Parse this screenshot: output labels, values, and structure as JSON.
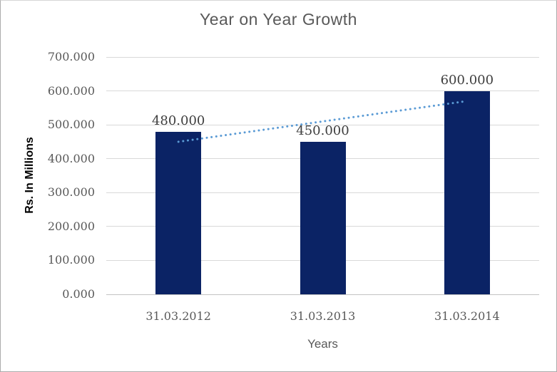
{
  "chart_data": {
    "type": "bar",
    "title": "Year on Year Growth",
    "xlabel": "Years",
    "ylabel": "Rs. In Millions",
    "categories": [
      "31.03.2012",
      "31.03.2013",
      "31.03.2014"
    ],
    "values": [
      480,
      450,
      600
    ],
    "data_labels": [
      "480.000",
      "450.000",
      "600.000"
    ],
    "y_ticks": [
      {
        "value": 0,
        "label": "0.000"
      },
      {
        "value": 100,
        "label": "100.000"
      },
      {
        "value": 200,
        "label": "200.000"
      },
      {
        "value": 300,
        "label": "300.000"
      },
      {
        "value": 400,
        "label": "400.000"
      },
      {
        "value": 500,
        "label": "500.000"
      },
      {
        "value": 600,
        "label": "600.000"
      },
      {
        "value": 700,
        "label": "700.000"
      }
    ],
    "ylim": [
      0,
      700
    ],
    "grid": true,
    "legend": "none",
    "trendline": {
      "type": "linear",
      "style": "dotted",
      "points": [
        450,
        510,
        570
      ]
    }
  },
  "colors": {
    "bar": "#0b2365",
    "trendline": "#5b9bd5",
    "gridline": "#d9d9d9",
    "baseline": "#c3c3c3",
    "title_text": "#595959",
    "tick_text": "#595959",
    "data_label_text": "#3f3f3f",
    "axis_title_text": "#595959",
    "y_axis_title_text": "#000000",
    "border": "#ababab"
  }
}
